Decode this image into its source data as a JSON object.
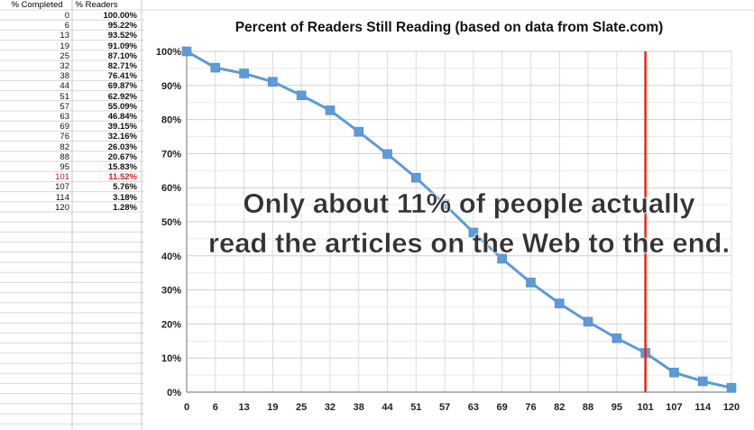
{
  "spreadsheet": {
    "headers": [
      "% Completed",
      "% Readers"
    ],
    "rows": [
      [
        "0",
        "100.00%"
      ],
      [
        "6",
        "95.22%"
      ],
      [
        "13",
        "93.52%"
      ],
      [
        "19",
        "91.09%"
      ],
      [
        "25",
        "87.10%"
      ],
      [
        "32",
        "82.71%"
      ],
      [
        "38",
        "76.41%"
      ],
      [
        "44",
        "69.87%"
      ],
      [
        "51",
        "62.92%"
      ],
      [
        "57",
        "55.09%"
      ],
      [
        "63",
        "46.84%"
      ],
      [
        "69",
        "39.15%"
      ],
      [
        "76",
        "32.16%"
      ],
      [
        "82",
        "26.03%"
      ],
      [
        "88",
        "20.67%"
      ],
      [
        "95",
        "15.83%"
      ],
      [
        "101",
        "11.52%"
      ],
      [
        "107",
        "5.76%"
      ],
      [
        "114",
        "3.18%"
      ],
      [
        "120",
        "1.28%"
      ]
    ],
    "highlight_row_label": "101",
    "highlight_color": "#e01a1a"
  },
  "chart_data": {
    "type": "line",
    "title": "Percent of Readers Still Reading (based on data from Slate.com)",
    "xlabel": "",
    "ylabel": "",
    "categories": [
      "0",
      "6",
      "13",
      "19",
      "25",
      "32",
      "38",
      "44",
      "51",
      "57",
      "63",
      "69",
      "76",
      "82",
      "88",
      "95",
      "101",
      "107",
      "114",
      "120"
    ],
    "series": [
      {
        "values": [
          100.0,
          95.22,
          93.52,
          91.09,
          87.1,
          82.71,
          76.41,
          69.87,
          62.92,
          55.09,
          46.84,
          39.15,
          32.16,
          26.03,
          20.67,
          15.83,
          11.52,
          5.76,
          3.18,
          1.28
        ],
        "color": "#5d9ad8"
      }
    ],
    "y_ticks": [
      "0%",
      "10%",
      "20%",
      "30%",
      "40%",
      "50%",
      "60%",
      "70%",
      "80%",
      "90%",
      "100%"
    ],
    "ylim": [
      0,
      100
    ],
    "grid": true,
    "marker_line": {
      "category": "101",
      "color": "#e8261c"
    },
    "annotation": [
      "Only about 11% of people actually",
      "read the articles on the Web to the end."
    ]
  }
}
